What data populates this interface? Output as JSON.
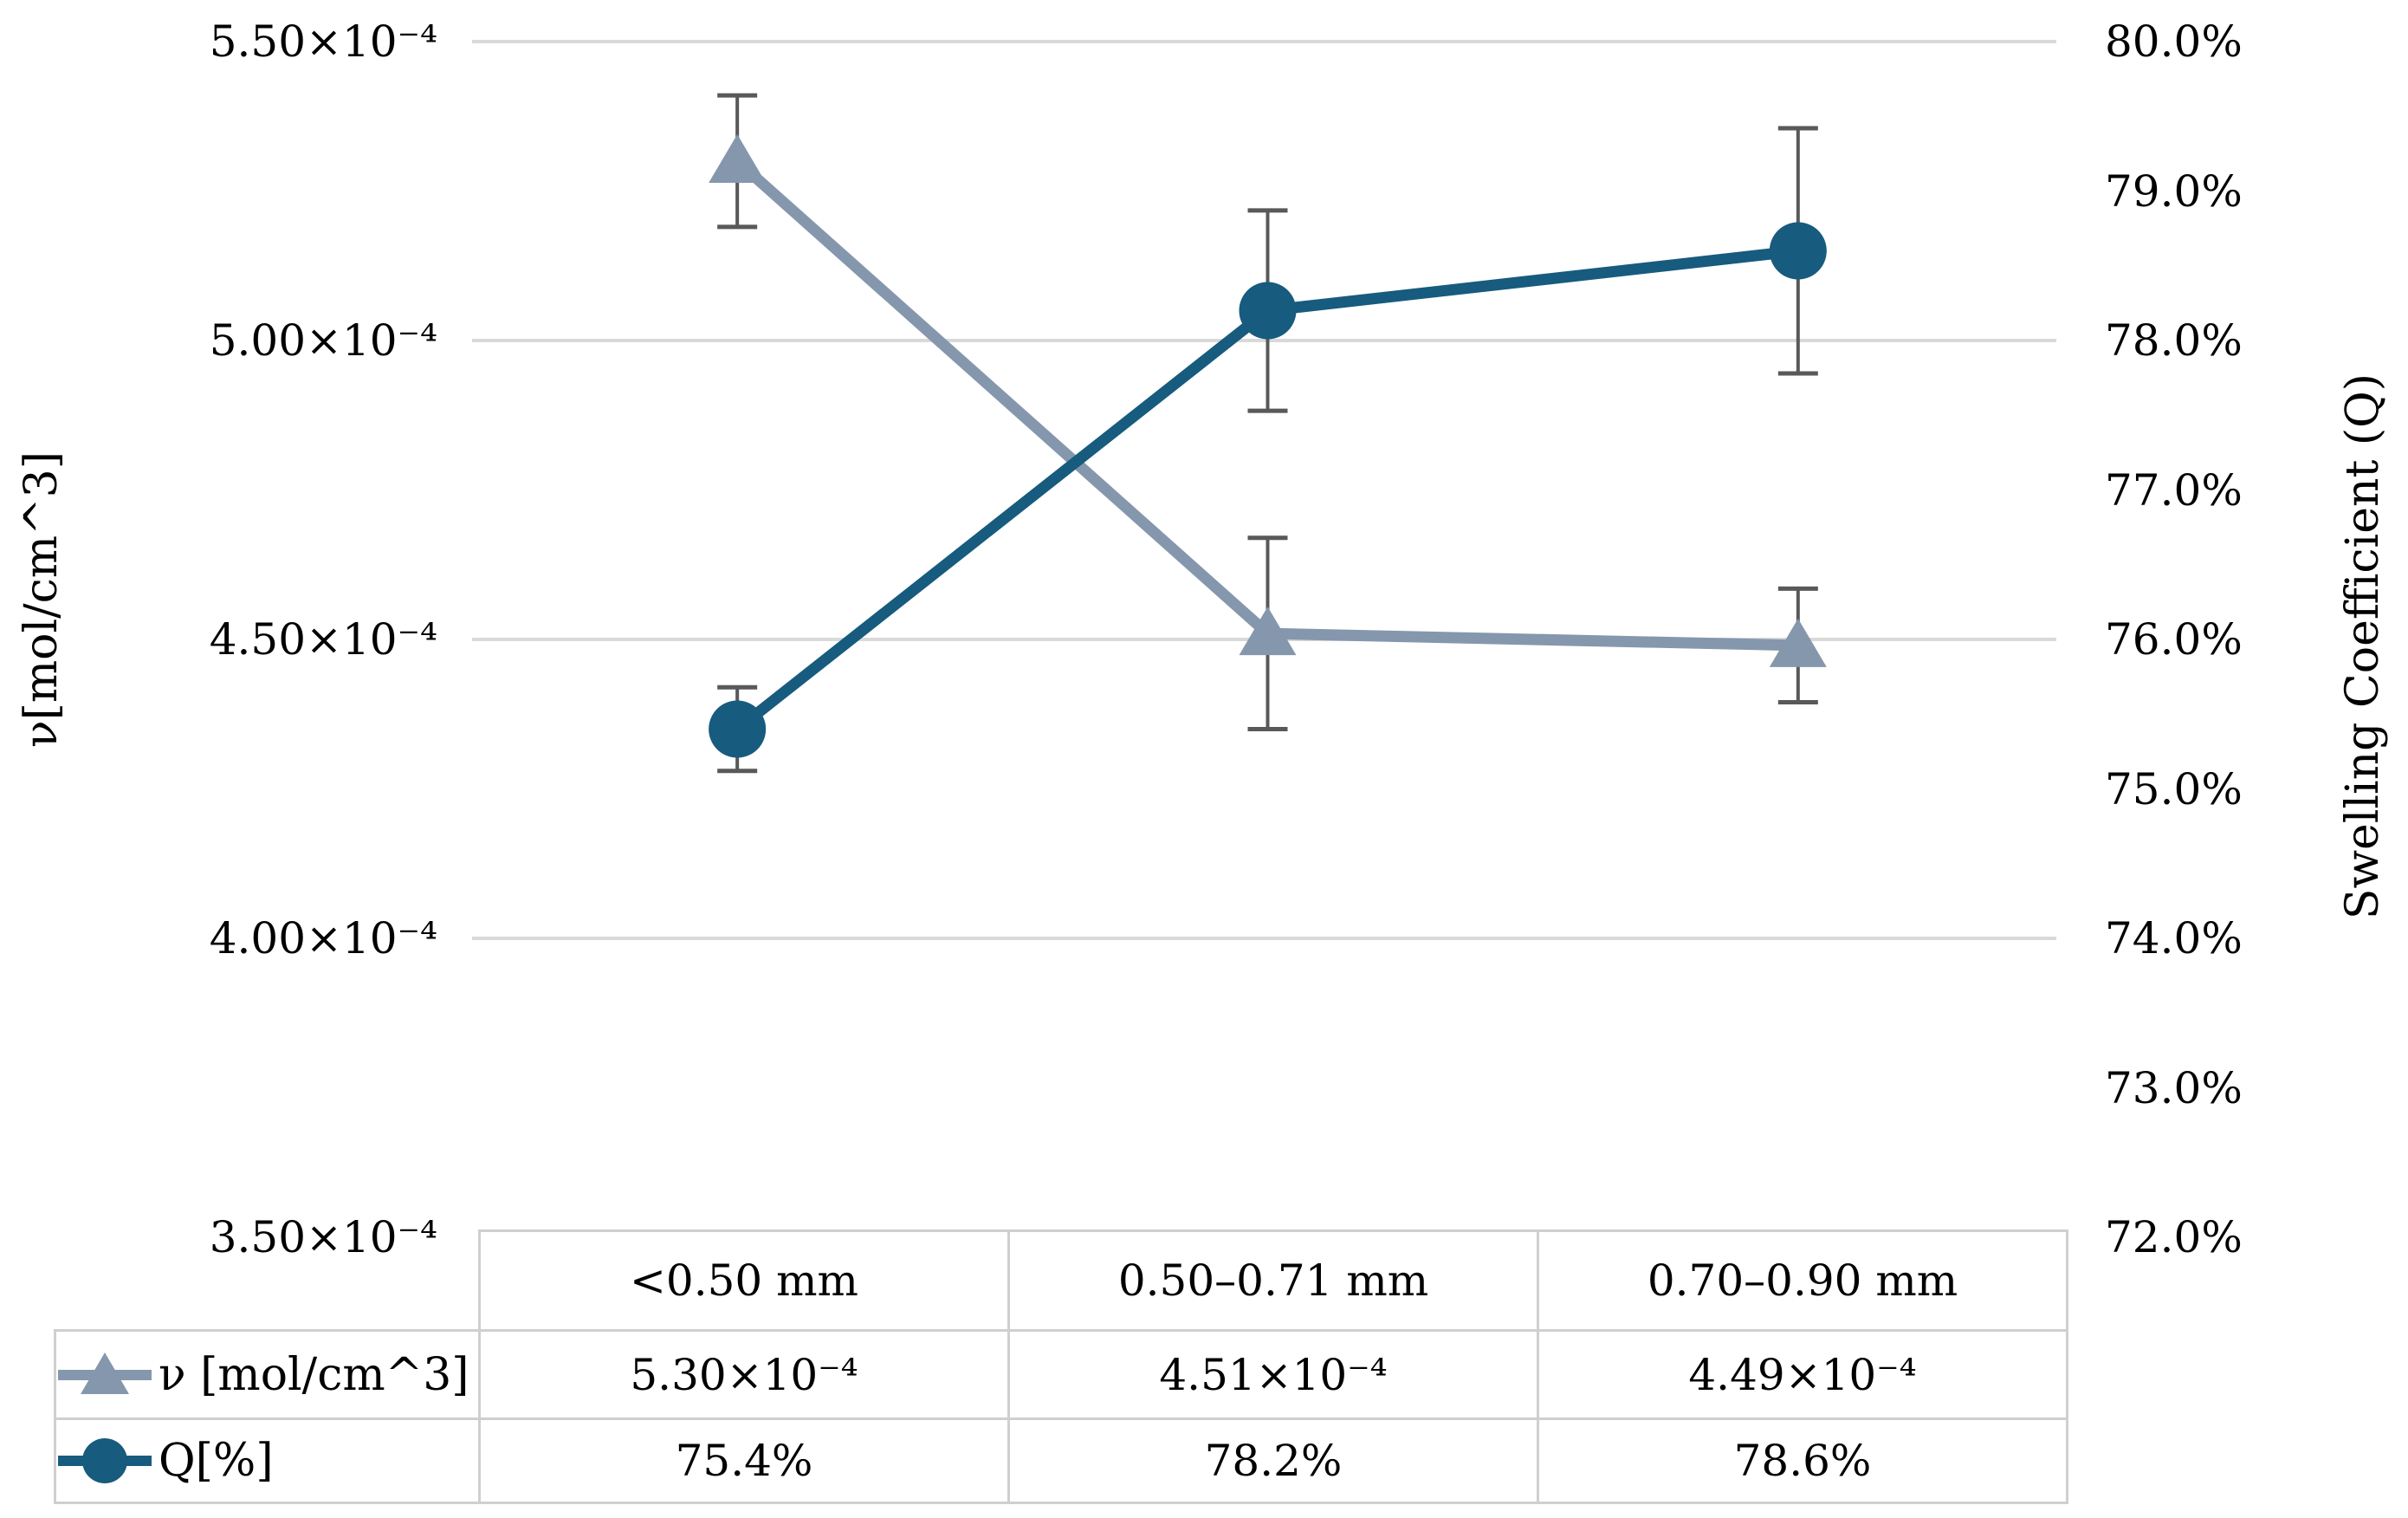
{
  "chart_data": {
    "type": "line",
    "categories": [
      "<0.50 mm",
      "0.50–0.71 mm",
      "0.70–0.90 mm"
    ],
    "series": [
      {
        "name": "ν [mol/cm^3]",
        "axis": "left",
        "marker": "triangle",
        "color": "#8597AD",
        "values": [
          0.00053,
          0.000451,
          0.000449
        ],
        "errors": [
          1.1e-05,
          1.6e-05,
          9.5e-06
        ],
        "display_values": [
          "5.30×10⁻⁴",
          "4.51×10⁻⁴",
          "4.49×10⁻⁴"
        ]
      },
      {
        "name": "Q[%]",
        "axis": "right",
        "marker": "circle",
        "color": "#175B7E",
        "values": [
          0.754,
          0.782,
          0.786
        ],
        "errors": [
          0.0028,
          0.0067,
          0.0082
        ],
        "display_values": [
          "75.4%",
          "78.2%",
          "78.6%"
        ]
      }
    ],
    "left_axis": {
      "title": "ν[mol/cm^3]",
      "min": 0.00035,
      "max": 0.00055,
      "ticks": [
        {
          "label": "5.50×10⁻⁴",
          "value": 0.00055
        },
        {
          "label": "5.00×10⁻⁴",
          "value": 0.0005
        },
        {
          "label": "4.50×10⁻⁴",
          "value": 0.00045
        },
        {
          "label": "4.00×10⁻⁴",
          "value": 0.0004
        },
        {
          "label": "3.50×10⁻⁴",
          "value": 0.00035
        }
      ],
      "gridline_values": [
        0.00055,
        0.0005,
        0.00045,
        0.0004
      ]
    },
    "right_axis": {
      "title": "Swelling Coefficient (Q)",
      "min": 0.72,
      "max": 0.8,
      "ticks": [
        {
          "label": "80.0%",
          "value": 0.8
        },
        {
          "label": "79.0%",
          "value": 0.79
        },
        {
          "label": "78.0%",
          "value": 0.78
        },
        {
          "label": "77.0%",
          "value": 0.77
        },
        {
          "label": "76.0%",
          "value": 0.76
        },
        {
          "label": "75.0%",
          "value": 0.75
        },
        {
          "label": "74.0%",
          "value": 0.74
        },
        {
          "label": "73.0%",
          "value": 0.73
        },
        {
          "label": "72.0%",
          "value": 0.72
        }
      ]
    },
    "colors": {
      "grid": "#D9D9D9",
      "error_bar": "#595959",
      "table_border": "#CFCFCF",
      "background": "#FFFFFF",
      "text": "#000000"
    },
    "grid": "horizontal-major-left-axis",
    "legend_position": "table-left"
  }
}
